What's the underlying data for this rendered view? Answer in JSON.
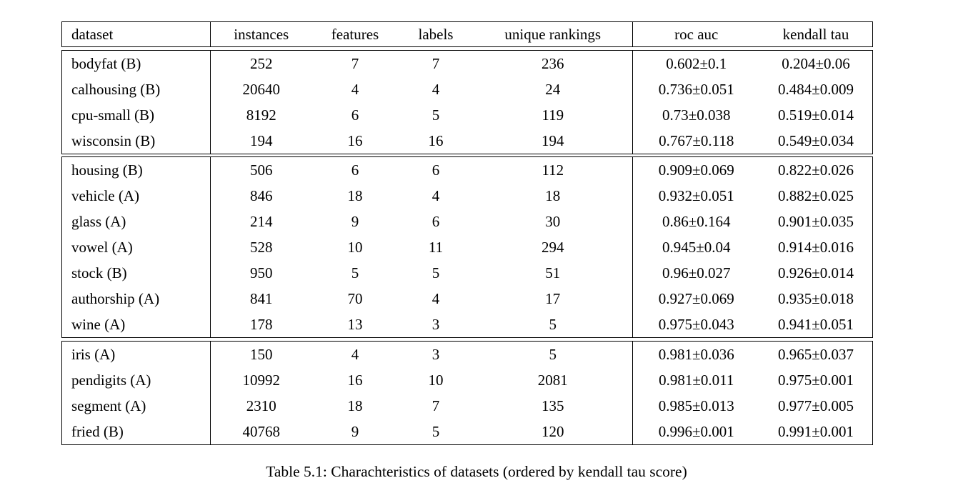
{
  "page": {
    "background_color": "#ffffff",
    "text_color": "#000000",
    "border_color": "#000000"
  },
  "caption": "Table 5.1: Charachteristics of datasets (ordered by kendall tau score)",
  "table": {
    "columns": [
      "dataset",
      "instances",
      "features",
      "labels",
      "unique rankings",
      "roc auc",
      "kendall tau"
    ],
    "groups": [
      [
        [
          "bodyfat (B)",
          "252",
          "7",
          "7",
          "236",
          "0.602±0.1",
          "0.204±0.06"
        ],
        [
          "calhousing (B)",
          "20640",
          "4",
          "4",
          "24",
          "0.736±0.051",
          "0.484±0.009"
        ],
        [
          "cpu-small (B)",
          "8192",
          "6",
          "5",
          "119",
          "0.73±0.038",
          "0.519±0.014"
        ],
        [
          "wisconsin (B)",
          "194",
          "16",
          "16",
          "194",
          "0.767±0.118",
          "0.549±0.034"
        ]
      ],
      [
        [
          "housing (B)",
          "506",
          "6",
          "6",
          "112",
          "0.909±0.069",
          "0.822±0.026"
        ],
        [
          "vehicle (A)",
          "846",
          "18",
          "4",
          "18",
          "0.932±0.051",
          "0.882±0.025"
        ],
        [
          "glass (A)",
          "214",
          "9",
          "6",
          "30",
          "0.86±0.164",
          "0.901±0.035"
        ],
        [
          "vowel (A)",
          "528",
          "10",
          "11",
          "294",
          "0.945±0.04",
          "0.914±0.016"
        ],
        [
          "stock (B)",
          "950",
          "5",
          "5",
          "51",
          "0.96±0.027",
          "0.926±0.014"
        ],
        [
          "authorship (A)",
          "841",
          "70",
          "4",
          "17",
          "0.927±0.069",
          "0.935±0.018"
        ],
        [
          "wine (A)",
          "178",
          "13",
          "3",
          "5",
          "0.975±0.043",
          "0.941±0.051"
        ]
      ],
      [
        [
          "iris (A)",
          "150",
          "4",
          "3",
          "5",
          "0.981±0.036",
          "0.965±0.037"
        ],
        [
          "pendigits (A)",
          "10992",
          "16",
          "10",
          "2081",
          "0.981±0.011",
          "0.975±0.001"
        ],
        [
          "segment (A)",
          "2310",
          "18",
          "7",
          "135",
          "0.985±0.013",
          "0.977±0.005"
        ],
        [
          "fried (B)",
          "40768",
          "9",
          "5",
          "120",
          "0.996±0.001",
          "0.991±0.001"
        ]
      ]
    ]
  }
}
